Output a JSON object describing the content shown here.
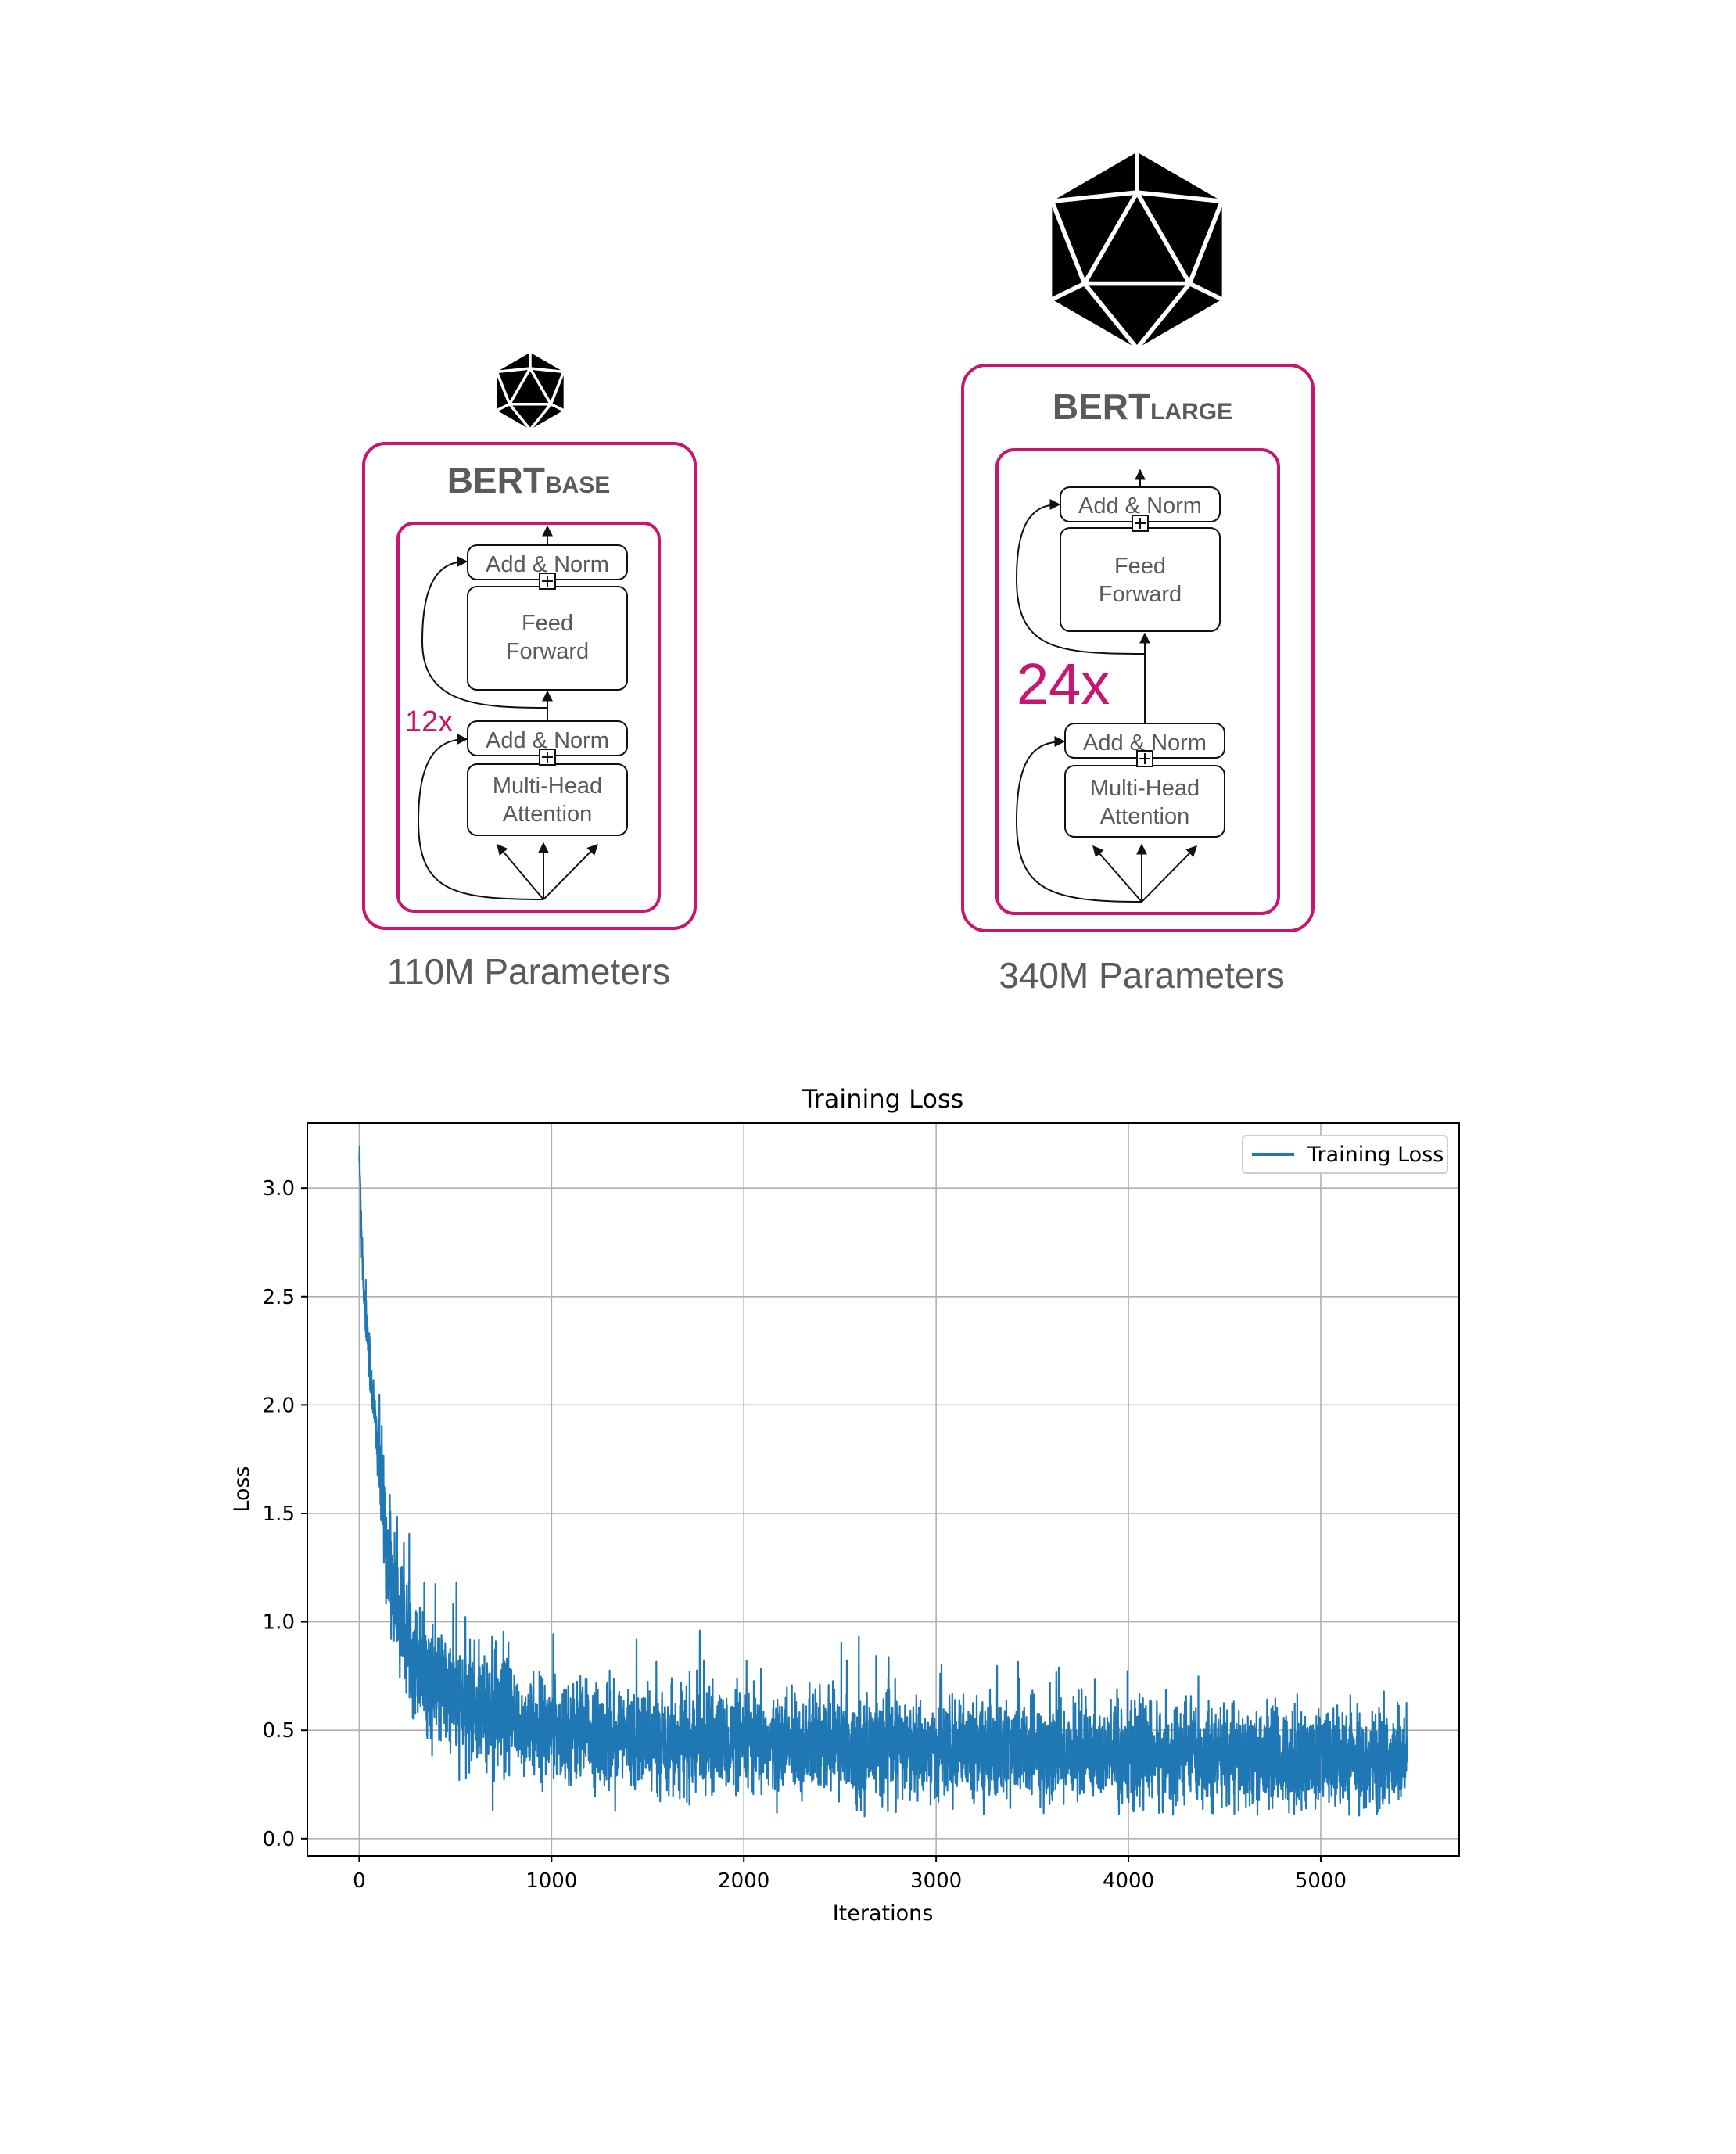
{
  "figure": {
    "base": {
      "title_main": "BERT",
      "title_sub": "BASE",
      "repeat": "12x",
      "add_norm_top": "Add & Norm",
      "ff_line1": "Feed",
      "ff_line2": "Forward",
      "add_norm_bottom": "Add & Norm",
      "mha_line1": "Multi-Head",
      "mha_line2": "Attention",
      "params": "110M Parameters"
    },
    "large": {
      "title_main": "BERT",
      "title_sub": "LARGE",
      "repeat": "24x",
      "add_norm_top": "Add & Norm",
      "ff_line1": "Feed",
      "ff_line2": "Forward",
      "add_norm_bottom": "Add & Norm",
      "mha_line1": "Multi-Head",
      "mha_line2": "Attention",
      "params": "340M Parameters"
    },
    "icon": "icosahedron-icon",
    "accent_color": "#c8166f",
    "text_gray": "#5a5a5a"
  },
  "chart_data": {
    "type": "line",
    "title": "Training Loss",
    "xlabel": "Iterations",
    "ylabel": "Loss",
    "xlim": [
      -270,
      5720
    ],
    "ylim": [
      -0.08,
      3.3
    ],
    "xticks": [
      0,
      1000,
      2000,
      3000,
      4000,
      5000
    ],
    "yticks": [
      0.0,
      0.5,
      1.0,
      1.5,
      2.0,
      2.5,
      3.0
    ],
    "grid": true,
    "legend": "top-right",
    "series": [
      {
        "name": "Training Loss",
        "color": "#1f77b4",
        "x_range": [
          0,
          5450
        ],
        "trend": [
          [
            0,
            3.15
          ],
          [
            20,
            2.6
          ],
          [
            50,
            2.25
          ],
          [
            100,
            1.75
          ],
          [
            150,
            1.3
          ],
          [
            200,
            1.05
          ],
          [
            300,
            0.82
          ],
          [
            400,
            0.7
          ],
          [
            600,
            0.6
          ],
          [
            800,
            0.53
          ],
          [
            1000,
            0.5
          ],
          [
            1500,
            0.46
          ],
          [
            2000,
            0.44
          ],
          [
            3000,
            0.41
          ],
          [
            4000,
            0.39
          ],
          [
            5000,
            0.37
          ],
          [
            5450,
            0.36
          ]
        ]
      }
    ]
  }
}
